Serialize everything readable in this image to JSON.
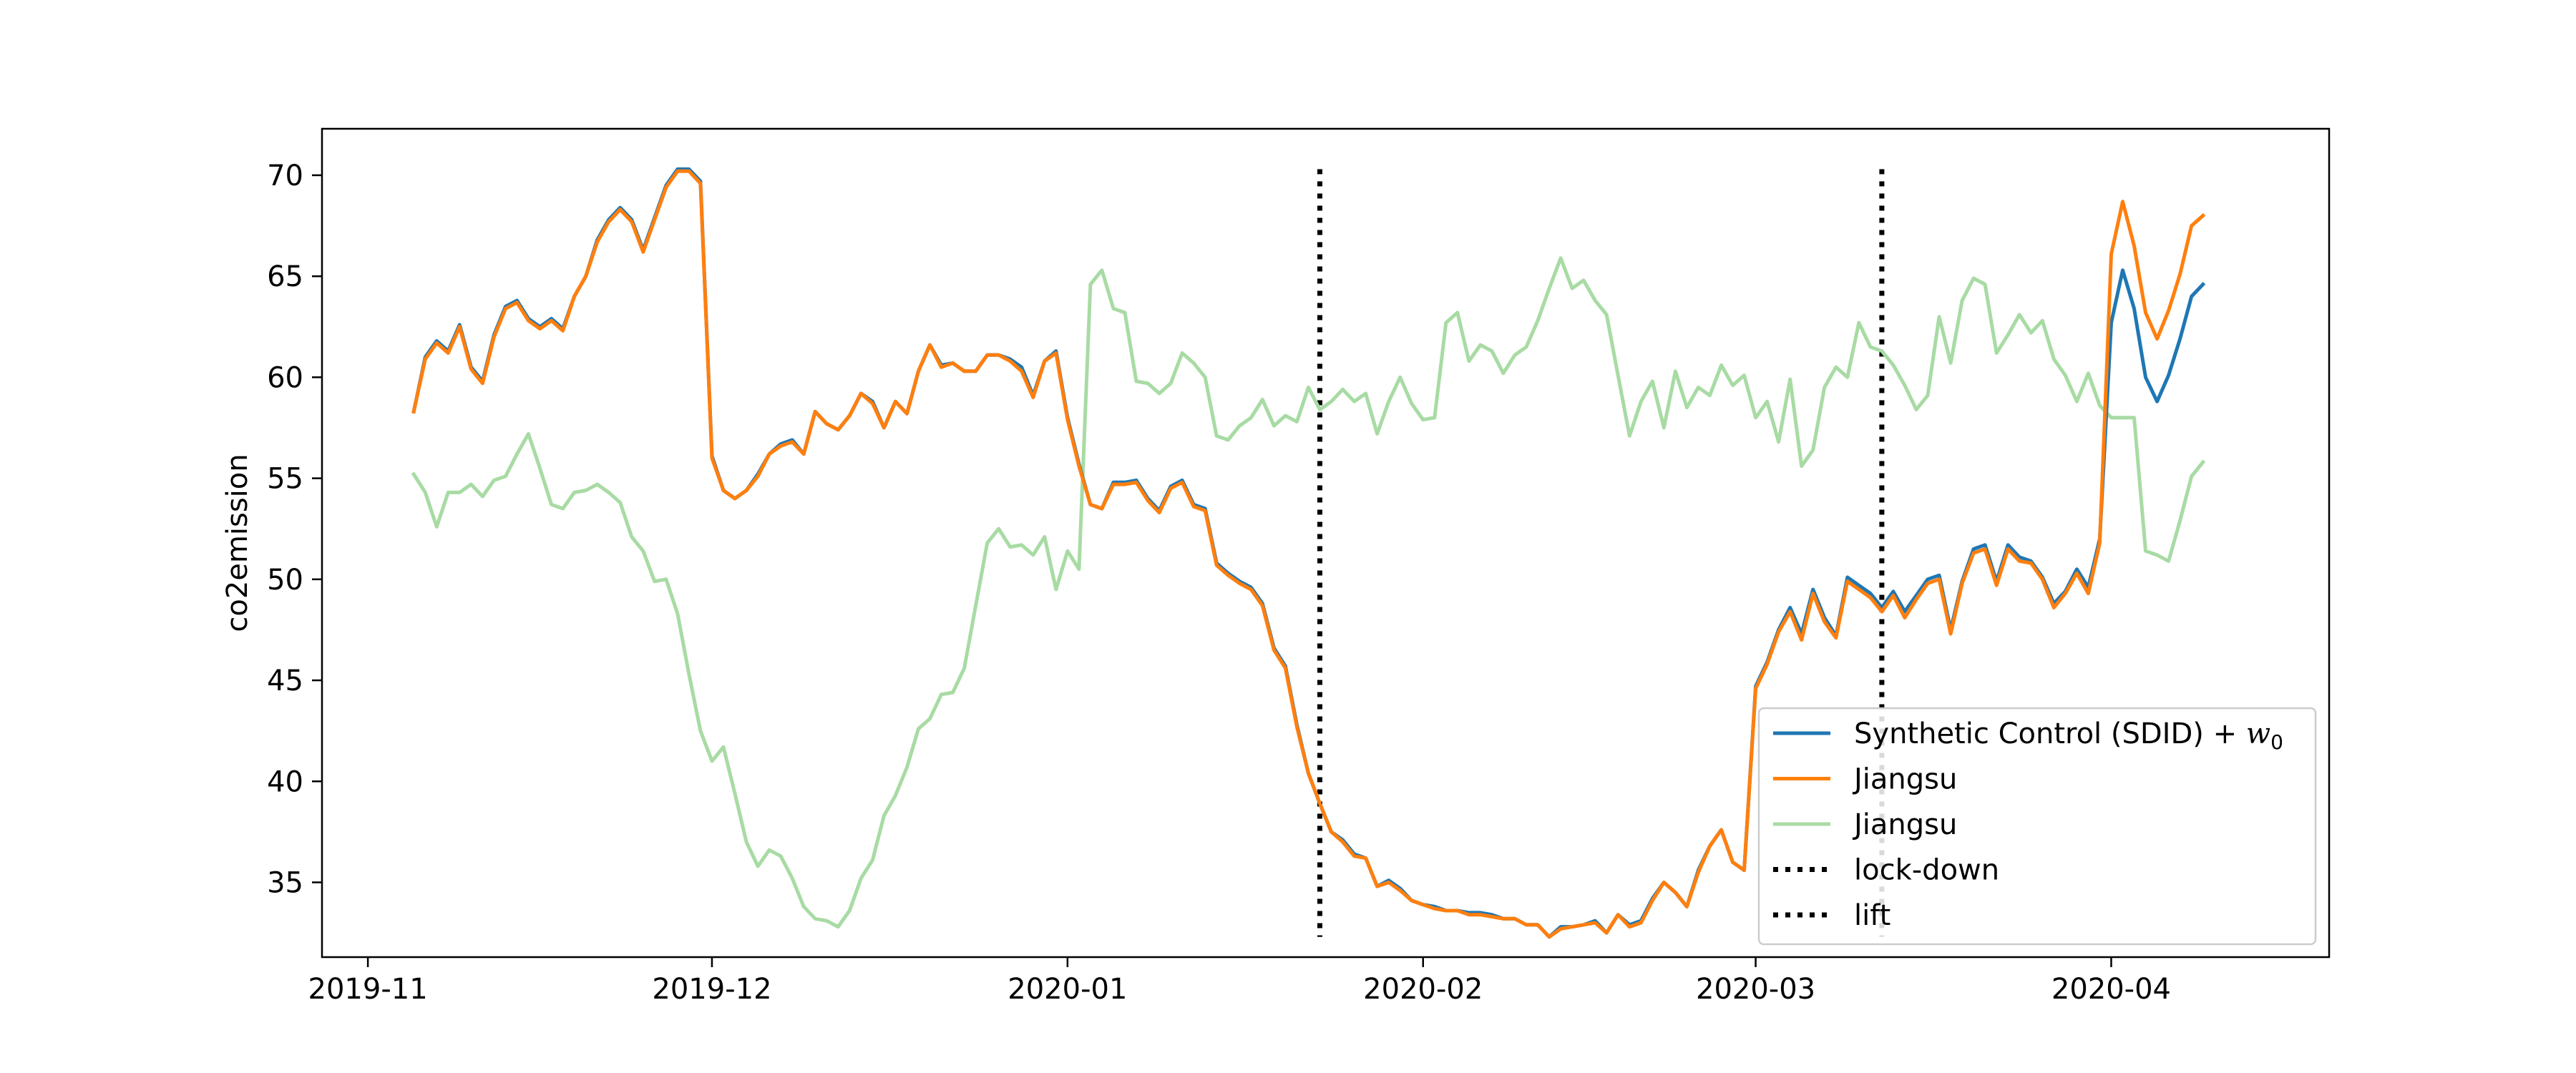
{
  "chart_data": {
    "type": "line",
    "title": "",
    "xlabel": "",
    "ylabel": "co2emission",
    "x_ticks": [
      "2019-11",
      "2019-12",
      "2020-01",
      "2020-02",
      "2020-03",
      "2020-04"
    ],
    "y_ticks": [
      35,
      40,
      45,
      50,
      55,
      60,
      65,
      70
    ],
    "xlim": [
      "2019-10-28",
      "2020-04-20"
    ],
    "ylim": [
      31.3,
      72.3
    ],
    "grid": false,
    "legend_position": "lower right",
    "x": [
      "2019-11-05",
      "2019-11-06",
      "2019-11-07",
      "2019-11-08",
      "2019-11-09",
      "2019-11-10",
      "2019-11-11",
      "2019-11-12",
      "2019-11-13",
      "2019-11-14",
      "2019-11-15",
      "2019-11-16",
      "2019-11-17",
      "2019-11-18",
      "2019-11-19",
      "2019-11-20",
      "2019-11-21",
      "2019-11-22",
      "2019-11-23",
      "2019-11-24",
      "2019-11-25",
      "2019-11-26",
      "2019-11-27",
      "2019-11-28",
      "2019-11-29",
      "2019-11-30",
      "2019-12-01",
      "2019-12-02",
      "2019-12-03",
      "2019-12-04",
      "2019-12-05",
      "2019-12-06",
      "2019-12-07",
      "2019-12-08",
      "2019-12-09",
      "2019-12-10",
      "2019-12-11",
      "2019-12-12",
      "2019-12-13",
      "2019-12-14",
      "2019-12-15",
      "2019-12-16",
      "2019-12-17",
      "2019-12-18",
      "2019-12-19",
      "2019-12-20",
      "2019-12-21",
      "2019-12-22",
      "2019-12-23",
      "2019-12-24",
      "2019-12-25",
      "2019-12-26",
      "2019-12-27",
      "2019-12-28",
      "2019-12-29",
      "2019-12-30",
      "2019-12-31",
      "2020-01-01",
      "2020-01-02",
      "2020-01-03",
      "2020-01-04",
      "2020-01-05",
      "2020-01-06",
      "2020-01-07",
      "2020-01-08",
      "2020-01-09",
      "2020-01-10",
      "2020-01-11",
      "2020-01-12",
      "2020-01-13",
      "2020-01-14",
      "2020-01-15",
      "2020-01-16",
      "2020-01-17",
      "2020-01-18",
      "2020-01-19",
      "2020-01-20",
      "2020-01-21",
      "2020-01-22",
      "2020-01-23",
      "2020-01-24",
      "2020-01-25",
      "2020-01-26",
      "2020-01-27",
      "2020-01-28",
      "2020-01-29",
      "2020-01-30",
      "2020-01-31",
      "2020-02-01",
      "2020-02-02",
      "2020-02-03",
      "2020-02-04",
      "2020-02-05",
      "2020-02-06",
      "2020-02-07",
      "2020-02-08",
      "2020-02-09",
      "2020-02-10",
      "2020-02-11",
      "2020-02-12",
      "2020-02-13",
      "2020-02-14",
      "2020-02-15",
      "2020-02-16",
      "2020-02-17",
      "2020-02-18",
      "2020-02-19",
      "2020-02-20",
      "2020-02-21",
      "2020-02-22",
      "2020-02-23",
      "2020-02-24",
      "2020-02-25",
      "2020-02-26",
      "2020-02-27",
      "2020-02-28",
      "2020-02-29",
      "2020-03-01",
      "2020-03-02",
      "2020-03-03",
      "2020-03-04",
      "2020-03-05",
      "2020-03-06",
      "2020-03-07",
      "2020-03-08",
      "2020-03-09",
      "2020-03-10",
      "2020-03-11",
      "2020-03-12",
      "2020-03-13",
      "2020-03-14",
      "2020-03-15",
      "2020-03-16",
      "2020-03-17",
      "2020-03-18",
      "2020-03-19",
      "2020-03-20",
      "2020-03-21",
      "2020-03-22",
      "2020-03-23",
      "2020-03-24",
      "2020-03-25",
      "2020-03-26",
      "2020-03-27",
      "2020-03-28",
      "2020-03-29",
      "2020-03-30",
      "2020-03-31",
      "2020-04-01",
      "2020-04-02",
      "2020-04-03",
      "2020-04-04",
      "2020-04-05",
      "2020-04-06",
      "2020-04-07",
      "2020-04-08",
      "2020-04-09"
    ],
    "series": [
      {
        "name": "Synthetic Control (SDID) + w0",
        "color": "#1f77b4",
        "values": [
          58.3,
          61.0,
          61.8,
          61.3,
          62.6,
          60.5,
          59.8,
          62.1,
          63.5,
          63.8,
          62.9,
          62.5,
          62.9,
          62.4,
          64.0,
          65.0,
          66.8,
          67.8,
          68.4,
          67.8,
          66.3,
          67.9,
          69.5,
          70.3,
          70.3,
          69.7,
          56.1,
          54.4,
          54.0,
          54.4,
          55.2,
          56.2,
          56.7,
          56.9,
          56.2,
          58.3,
          57.7,
          57.4,
          58.1,
          59.2,
          58.8,
          57.5,
          58.8,
          58.2,
          60.3,
          61.6,
          60.6,
          60.7,
          60.3,
          60.3,
          61.1,
          61.1,
          60.9,
          60.5,
          59.1,
          60.8,
          61.3,
          58.0,
          55.7,
          53.7,
          53.5,
          54.8,
          54.8,
          54.9,
          54.0,
          53.4,
          54.6,
          54.9,
          53.7,
          53.5,
          50.8,
          50.3,
          49.9,
          49.6,
          48.8,
          46.6,
          45.7,
          42.8,
          40.4,
          38.9,
          37.5,
          37.1,
          36.4,
          36.2,
          34.8,
          35.1,
          34.7,
          34.1,
          33.9,
          33.8,
          33.6,
          33.6,
          33.5,
          33.5,
          33.4,
          33.2,
          33.2,
          32.9,
          32.9,
          32.3,
          32.8,
          32.8,
          32.9,
          33.1,
          32.5,
          33.4,
          32.9,
          33.1,
          34.2,
          35.0,
          34.5,
          33.8,
          35.6,
          36.8,
          37.6,
          36.0,
          35.6,
          44.7,
          45.9,
          47.5,
          48.6,
          47.3,
          49.5,
          48.1,
          47.2,
          50.1,
          49.7,
          49.3,
          48.6,
          49.4,
          48.4,
          49.2,
          50.0,
          50.2,
          47.5,
          49.9,
          51.5,
          51.7,
          49.9,
          51.7,
          51.1,
          50.9,
          50.1,
          48.8,
          49.4,
          50.5,
          49.6,
          52.0,
          62.7,
          65.3,
          63.4,
          60.0,
          58.8,
          60.1,
          61.9,
          64.0,
          64.6
        ]
      },
      {
        "name": "Jiangsu",
        "color": "#ff7f0e",
        "values": [
          58.3,
          60.9,
          61.7,
          61.2,
          62.5,
          60.4,
          59.7,
          62.0,
          63.4,
          63.7,
          62.8,
          62.4,
          62.8,
          62.3,
          64.0,
          65.0,
          66.7,
          67.7,
          68.3,
          67.7,
          66.2,
          67.8,
          69.4,
          70.2,
          70.2,
          69.6,
          56.0,
          54.4,
          54.0,
          54.4,
          55.1,
          56.2,
          56.6,
          56.8,
          56.2,
          58.3,
          57.7,
          57.4,
          58.1,
          59.2,
          58.7,
          57.5,
          58.8,
          58.2,
          60.3,
          61.6,
          60.5,
          60.7,
          60.3,
          60.3,
          61.1,
          61.1,
          60.8,
          60.3,
          59.0,
          60.8,
          61.2,
          57.9,
          55.6,
          53.7,
          53.5,
          54.7,
          54.7,
          54.8,
          53.9,
          53.3,
          54.5,
          54.8,
          53.6,
          53.4,
          50.7,
          50.2,
          49.8,
          49.5,
          48.7,
          46.5,
          45.6,
          42.7,
          40.4,
          38.9,
          37.5,
          37.0,
          36.3,
          36.2,
          34.8,
          35.0,
          34.6,
          34.1,
          33.9,
          33.7,
          33.6,
          33.6,
          33.4,
          33.4,
          33.3,
          33.2,
          33.2,
          32.9,
          32.9,
          32.3,
          32.7,
          32.8,
          32.9,
          33.0,
          32.5,
          33.4,
          32.8,
          33.0,
          34.1,
          35.0,
          34.5,
          33.8,
          35.5,
          36.8,
          37.6,
          36.0,
          35.6,
          44.6,
          45.8,
          47.4,
          48.4,
          47.0,
          49.3,
          47.9,
          47.1,
          49.9,
          49.5,
          49.1,
          48.4,
          49.2,
          48.1,
          49.0,
          49.8,
          50.0,
          47.3,
          49.8,
          51.3,
          51.5,
          49.7,
          51.5,
          50.9,
          50.8,
          50.0,
          48.6,
          49.3,
          50.3,
          49.3,
          51.8,
          66.1,
          68.7,
          66.5,
          63.2,
          61.9,
          63.3,
          65.1,
          67.5,
          68.0
        ]
      },
      {
        "name": "Jiangsu",
        "color": "#a8dba4",
        "values": [
          55.2,
          54.3,
          52.6,
          54.3,
          54.3,
          54.7,
          54.1,
          54.9,
          55.1,
          56.2,
          57.2,
          55.5,
          53.7,
          53.5,
          54.3,
          54.4,
          54.7,
          54.3,
          53.8,
          52.1,
          51.4,
          49.9,
          50.0,
          48.3,
          45.3,
          42.5,
          41.0,
          41.7,
          39.4,
          37.0,
          35.8,
          36.6,
          36.3,
          35.2,
          33.8,
          33.2,
          33.1,
          32.8,
          33.6,
          35.2,
          36.1,
          38.3,
          39.3,
          40.7,
          42.6,
          43.1,
          44.3,
          44.4,
          45.6,
          48.7,
          51.8,
          52.5,
          51.6,
          51.7,
          51.2,
          52.1,
          49.5,
          51.4,
          50.5,
          64.6,
          65.3,
          63.4,
          63.2,
          59.8,
          59.7,
          59.2,
          59.7,
          61.2,
          60.7,
          60.0,
          57.1,
          56.9,
          57.6,
          58.0,
          58.9,
          57.6,
          58.1,
          57.8,
          59.5,
          58.4,
          58.8,
          59.4,
          58.8,
          59.2,
          57.2,
          58.8,
          60.0,
          58.7,
          57.9,
          58.0,
          62.7,
          63.2,
          60.8,
          61.6,
          61.3,
          60.2,
          61.1,
          61.5,
          62.8,
          64.4,
          65.9,
          64.4,
          64.8,
          63.8,
          63.1,
          60.1,
          57.1,
          58.8,
          59.8,
          57.5,
          60.3,
          58.5,
          59.5,
          59.1,
          60.6,
          59.6,
          60.1,
          58.0,
          58.8,
          56.8,
          59.9,
          55.6,
          56.4,
          59.5,
          60.5,
          60.0,
          62.7,
          61.5,
          61.3,
          60.6,
          59.6,
          58.4,
          59.1,
          63.0,
          60.7,
          63.8,
          64.9,
          64.6,
          61.2,
          62.1,
          63.1,
          62.2,
          62.8,
          60.9,
          60.1,
          58.8,
          60.2,
          58.6,
          58.0,
          58.0,
          58.0,
          51.4,
          51.2,
          50.9,
          52.9,
          55.1,
          55.8
        ]
      }
    ],
    "vlines": [
      {
        "name": "lock-down",
        "x": "2020-01-23",
        "color": "#000000"
      },
      {
        "name": "lift",
        "x": "2020-03-12",
        "color": "#000000"
      }
    ],
    "legend": {
      "entries": [
        {
          "label_main": "Synthetic Control (SDID) + ",
          "label_math": "w",
          "label_sub": "0",
          "color": "#1f77b4",
          "style": "solid"
        },
        {
          "label_main": "Jiangsu",
          "color": "#ff7f0e",
          "style": "solid"
        },
        {
          "label_main": "Jiangsu",
          "color": "#a8dba4",
          "style": "solid"
        },
        {
          "label_main": "lock-down",
          "color": "#000000",
          "style": "dotted"
        },
        {
          "label_main": "lift",
          "color": "#000000",
          "style": "dotted"
        }
      ]
    }
  }
}
